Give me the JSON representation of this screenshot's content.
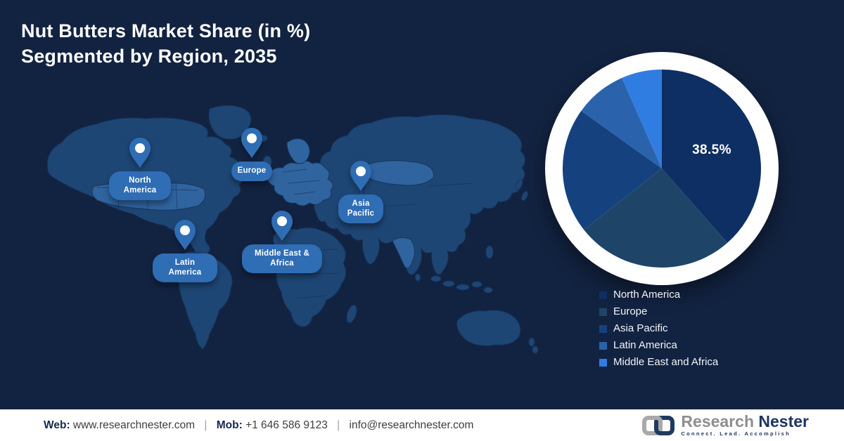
{
  "title": {
    "line1": "Nut Butters Market Share (in %)",
    "line2": "Segmented by Region, 2035"
  },
  "map": {
    "regions": [
      {
        "label": "North America"
      },
      {
        "label": "Europe"
      },
      {
        "label": "Asia Pacific"
      },
      {
        "label": "Middle East & Africa"
      },
      {
        "label": "Latin America"
      }
    ]
  },
  "chart_data": {
    "type": "pie",
    "title": "Nut Butters Market Share (in %) Segmented by Region, 2035",
    "unit": "%",
    "categories": [
      "North America",
      "Europe",
      "Asia Pacific",
      "Latin America",
      "Middle East and Africa"
    ],
    "values": [
      38.5,
      25.9,
      20.5,
      8.5,
      6.6
    ],
    "colors": [
      "#0D2F63",
      "#1E4568",
      "#15427F",
      "#2A63AC",
      "#2F7DE0"
    ],
    "data_label": "38.5%",
    "labeled_slice": "North America",
    "legend_position": "bottom-right",
    "start_angle": "12 o'clock, clockwise"
  },
  "footer": {
    "web_label": "Web:",
    "web_value": "www.researchnester.com",
    "mob_label": "Mob:",
    "mob_value": "+1 646 586 9123",
    "email": "info@researchnester.com",
    "separator": "|"
  },
  "logo": {
    "name_part1": "Research",
    "name_part2": "Nester",
    "tagline": "Connect. Lead. Accomplish"
  },
  "palette": {
    "background": "#122341",
    "map_land": "#1E4674",
    "map_land_light": "#2F649F",
    "pin_blue": "#2F6DB5",
    "footer_bg": "#FFFFFF",
    "logo_navy": "#1D3560",
    "logo_gray": "#8E8E8E"
  }
}
